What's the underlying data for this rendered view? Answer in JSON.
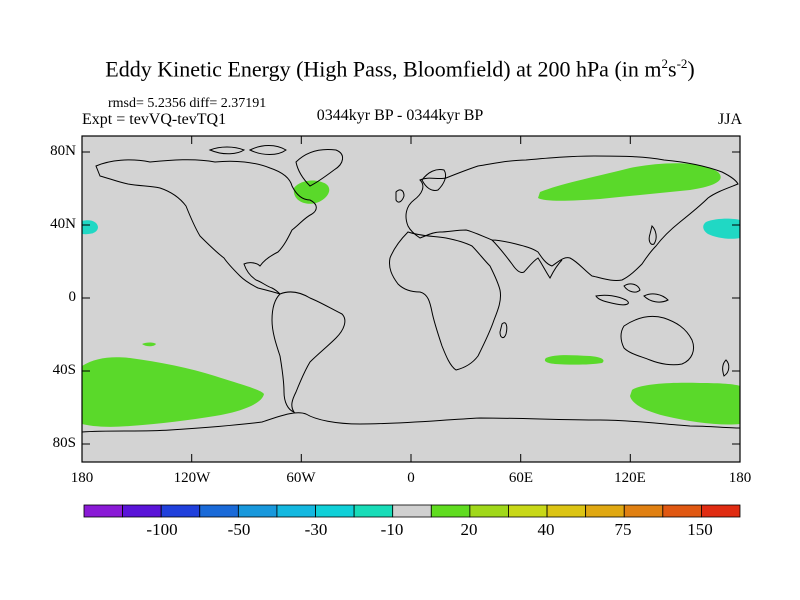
{
  "map": {
    "title": "Eddy Kinetic Energy (High Pass, Bloomfield) at 200 hPa (in m",
    "title_sup1": "2",
    "title_mid": "s",
    "title_sup2": "-2",
    "title_end": ")",
    "stats": "rmsd= 5.2356 diff= 2.37191",
    "expt": "Expt = tevVQ-tevTQ1",
    "period": "0344kyr BP - 0344kyr BP",
    "season": "JJA",
    "lat_labels": [
      "80N",
      "40N",
      "0",
      "40S",
      "80S"
    ],
    "lon_labels": [
      "180",
      "120W",
      "60W",
      "0",
      "60E",
      "120E",
      "180"
    ],
    "background_color": "#d3d3d3",
    "positive_fill": "#5ad92a",
    "negative_fill": "#20d8c4",
    "anomaly_regions": [
      {
        "name": "North Atlantic (Labrador)",
        "sign": "positive"
      },
      {
        "name": "Northern Asia",
        "sign": "positive"
      },
      {
        "name": "North Pacific",
        "sign": "negative"
      },
      {
        "name": "North Pacific (dateline west)",
        "sign": "negative"
      },
      {
        "name": "South Pacific",
        "sign": "positive"
      },
      {
        "name": "South Indian Ocean",
        "sign": "positive"
      },
      {
        "name": "Southern Ocean south of Australia",
        "sign": "positive"
      }
    ]
  },
  "colorbar": {
    "colors": [
      "#8a1ad6",
      "#5a14d8",
      "#2040dc",
      "#1a6ad8",
      "#1898dc",
      "#14b8e0",
      "#10d0d8",
      "#18dcb8",
      "#d0d0d0",
      "#60dc20",
      "#a0d81a",
      "#c8d818",
      "#dcc414",
      "#e0a812",
      "#e08012",
      "#e05812",
      "#e02c12"
    ],
    "labels": [
      "-100",
      "-50",
      "-30",
      "-10",
      "20",
      "40",
      "75",
      "150"
    ]
  }
}
